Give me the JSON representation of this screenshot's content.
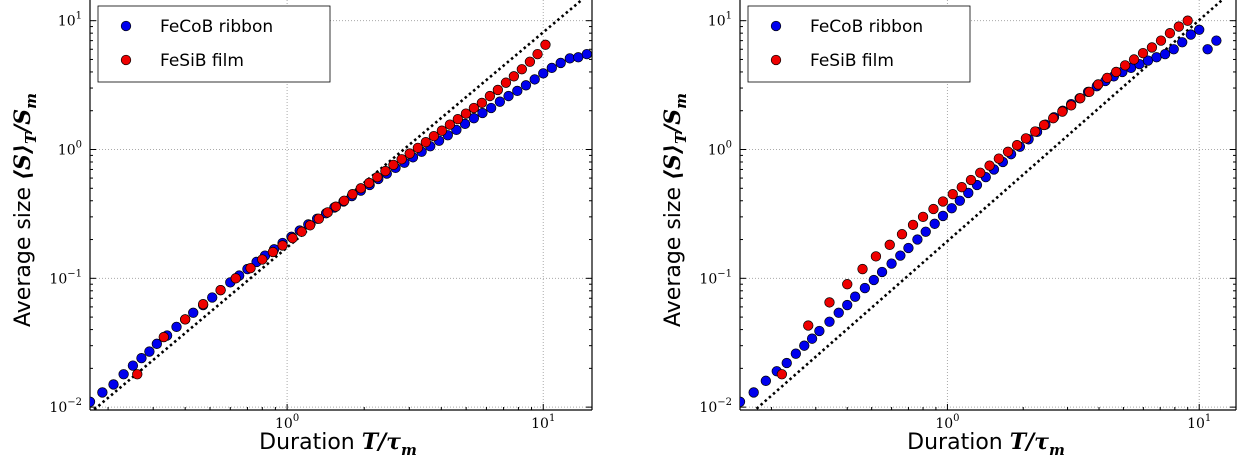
{
  "chart_data": [
    {
      "type": "scatter",
      "scale": "log-log",
      "xlabel": "Duration",
      "xlabel_math": "T/τ",
      "xlabel_sub": "m",
      "ylabel": "Average size",
      "ylabel_math": "⟨S⟩",
      "ylabel_sub1": "T",
      "ylabel_mid": "/S",
      "ylabel_sub2": "m",
      "xlim": [
        0.17,
        15.5
      ],
      "ylim": [
        0.0095,
        15
      ],
      "grid": true,
      "legend_position": "top-left",
      "x_ticks": [
        {
          "base": "10",
          "exp": "0",
          "value": 1
        },
        {
          "base": "10",
          "exp": "1",
          "value": 10
        }
      ],
      "y_ticks": [
        {
          "base": "10",
          "exp": "−2",
          "value": 0.01
        },
        {
          "base": "10",
          "exp": "−1",
          "value": 0.1
        },
        {
          "base": "10",
          "exp": "0",
          "value": 1
        },
        {
          "base": "10",
          "exp": "1",
          "value": 10
        }
      ],
      "series": [
        {
          "name": "FeCoB ribbon",
          "color": "#0000ee",
          "x": [
            0.17,
            0.19,
            0.21,
            0.23,
            0.25,
            0.27,
            0.29,
            0.31,
            0.34,
            0.37,
            0.4,
            0.43,
            0.47,
            0.51,
            0.55,
            0.6,
            0.65,
            0.7,
            0.76,
            0.82,
            0.89,
            0.96,
            1.04,
            1.12,
            1.21,
            1.31,
            1.42,
            1.53,
            1.66,
            1.79,
            1.94,
            2.1,
            2.27,
            2.45,
            2.65,
            2.87,
            3.1,
            3.35,
            3.62,
            3.92,
            4.24,
            4.58,
            4.95,
            5.36,
            5.79,
            6.26,
            6.77,
            7.32,
            7.92,
            8.56,
            9.26,
            10.0,
            10.8,
            11.7,
            12.7,
            13.7,
            14.8
          ],
          "y": [
            0.011,
            0.013,
            0.015,
            0.018,
            0.021,
            0.024,
            0.027,
            0.031,
            0.036,
            0.042,
            0.048,
            0.054,
            0.062,
            0.071,
            0.081,
            0.093,
            0.105,
            0.118,
            0.134,
            0.15,
            0.168,
            0.188,
            0.21,
            0.235,
            0.262,
            0.29,
            0.32,
            0.355,
            0.395,
            0.435,
            0.48,
            0.53,
            0.59,
            0.65,
            0.72,
            0.79,
            0.87,
            0.96,
            1.06,
            1.17,
            1.29,
            1.42,
            1.58,
            1.75,
            1.92,
            2.1,
            2.35,
            2.6,
            2.85,
            3.15,
            3.5,
            3.9,
            4.3,
            4.7,
            5.1,
            5.2,
            5.5
          ]
        },
        {
          "name": "FeSiB film",
          "color": "#ee0000",
          "x": [
            0.26,
            0.33,
            0.4,
            0.47,
            0.55,
            0.63,
            0.72,
            0.8,
            0.88,
            0.96,
            1.05,
            1.14,
            1.23,
            1.33,
            1.44,
            1.55,
            1.67,
            1.8,
            1.94,
            2.09,
            2.25,
            2.42,
            2.6,
            2.8,
            3.01,
            3.24,
            3.48,
            3.74,
            4.02,
            4.32,
            4.64,
            4.99,
            5.36,
            5.76,
            6.19,
            6.65,
            7.15,
            7.68,
            8.25,
            8.87,
            9.5,
            10.2
          ],
          "y": [
            0.018,
            0.035,
            0.048,
            0.063,
            0.081,
            0.1,
            0.12,
            0.14,
            0.16,
            0.18,
            0.205,
            0.23,
            0.258,
            0.29,
            0.325,
            0.36,
            0.4,
            0.45,
            0.5,
            0.55,
            0.61,
            0.68,
            0.76,
            0.84,
            0.93,
            1.03,
            1.14,
            1.27,
            1.4,
            1.56,
            1.72,
            1.9,
            2.1,
            2.3,
            2.6,
            2.9,
            3.3,
            3.7,
            4.2,
            4.8,
            5.5,
            6.5
          ]
        }
      ],
      "fit_line": {
        "style": "dotted",
        "x": [
          0.17,
          15
        ],
        "y": [
          0.009,
          16
        ]
      }
    },
    {
      "type": "scatter",
      "scale": "log-log",
      "xlabel": "Duration",
      "xlabel_math": "T/τ",
      "xlabel_sub": "m",
      "ylabel": "Average size",
      "ylabel_math": "⟨S⟩",
      "ylabel_sub1": "T",
      "ylabel_mid": "/S",
      "ylabel_sub2": "m",
      "xlim": [
        0.15,
        14
      ],
      "ylim": [
        0.0095,
        15
      ],
      "grid": true,
      "legend_position": "top-left",
      "x_ticks": [
        {
          "base": "10",
          "exp": "0",
          "value": 1
        },
        {
          "base": "10",
          "exp": "1",
          "value": 10
        }
      ],
      "y_ticks": [
        {
          "base": "10",
          "exp": "−2",
          "value": 0.01
        },
        {
          "base": "10",
          "exp": "−1",
          "value": 0.1
        },
        {
          "base": "10",
          "exp": "0",
          "value": 1
        },
        {
          "base": "10",
          "exp": "1",
          "value": 10
        }
      ],
      "series": [
        {
          "name": "FeCoB ribbon",
          "color": "#0000ee",
          "x": [
            0.15,
            0.17,
            0.19,
            0.21,
            0.23,
            0.25,
            0.27,
            0.29,
            0.31,
            0.34,
            0.37,
            0.4,
            0.43,
            0.47,
            0.51,
            0.55,
            0.6,
            0.65,
            0.7,
            0.76,
            0.82,
            0.89,
            0.96,
            1.04,
            1.12,
            1.21,
            1.31,
            1.42,
            1.53,
            1.66,
            1.79,
            1.94,
            2.1,
            2.27,
            2.45,
            2.65,
            2.87,
            3.1,
            3.35,
            3.62,
            3.92,
            4.24,
            4.58,
            4.95,
            5.36,
            5.79,
            6.26,
            6.77,
            7.32,
            7.92,
            8.56,
            9.26,
            10.0,
            10.8,
            11.7
          ],
          "y": [
            0.011,
            0.013,
            0.016,
            0.019,
            0.022,
            0.026,
            0.03,
            0.034,
            0.039,
            0.046,
            0.054,
            0.062,
            0.072,
            0.084,
            0.097,
            0.112,
            0.13,
            0.15,
            0.172,
            0.2,
            0.23,
            0.265,
            0.305,
            0.35,
            0.4,
            0.46,
            0.53,
            0.61,
            0.7,
            0.8,
            0.92,
            1.05,
            1.2,
            1.37,
            1.56,
            1.78,
            2.0,
            2.25,
            2.5,
            2.8,
            3.1,
            3.4,
            3.7,
            4.0,
            4.3,
            4.6,
            4.9,
            5.2,
            5.5,
            6.0,
            6.8,
            7.8,
            8.5,
            6.0,
            7.0
          ]
        },
        {
          "name": "FeSiB film",
          "color": "#ee0000",
          "x": [
            0.22,
            0.28,
            0.34,
            0.4,
            0.46,
            0.52,
            0.59,
            0.66,
            0.73,
            0.8,
            0.88,
            0.96,
            1.05,
            1.14,
            1.24,
            1.35,
            1.47,
            1.6,
            1.74,
            1.89,
            2.05,
            2.23,
            2.42,
            2.63,
            2.86,
            3.1,
            3.37,
            3.66,
            3.97,
            4.31,
            4.68,
            5.08,
            5.51,
            5.98,
            6.49,
            7.05,
            7.65,
            8.3,
            9.0
          ],
          "y": [
            0.018,
            0.043,
            0.065,
            0.09,
            0.118,
            0.148,
            0.182,
            0.22,
            0.26,
            0.3,
            0.345,
            0.395,
            0.45,
            0.51,
            0.58,
            0.66,
            0.75,
            0.85,
            0.96,
            1.08,
            1.22,
            1.38,
            1.55,
            1.75,
            1.97,
            2.2,
            2.5,
            2.8,
            3.2,
            3.6,
            4.0,
            4.5,
            5.0,
            5.6,
            6.2,
            7.0,
            8.0,
            9.0,
            10.0
          ]
        }
      ],
      "fit_line": {
        "style": "dotted",
        "x": [
          0.15,
          14
        ],
        "y": [
          0.0075,
          18
        ]
      }
    }
  ]
}
